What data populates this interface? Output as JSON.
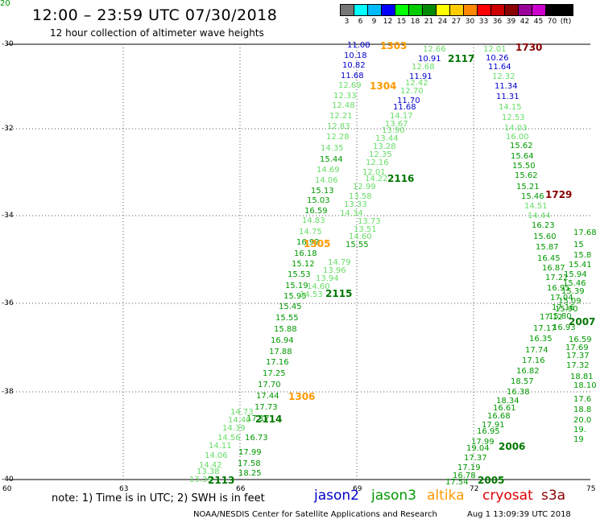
{
  "title": "12:00 – 23:59 UTC 07/30/2018",
  "subtitle": "12 hour collection of altimeter wave heights",
  "scale": {
    "unit": "(ft)",
    "labels": [
      "3",
      "6",
      "9",
      "12",
      "15",
      "18",
      "21",
      "24",
      "27",
      "30",
      "33",
      "36",
      "39",
      "42",
      "45",
      "70"
    ],
    "colors": [
      "#777777",
      "#00ffff",
      "#00bbff",
      "#0000ff",
      "#00ff00",
      "#00cc00",
      "#008800",
      "#ffff00",
      "#ffcc00",
      "#ff8800",
      "#ff0000",
      "#cc0000",
      "#880000",
      "#990099",
      "#cc00cc",
      "#000000",
      "#000000"
    ]
  },
  "axes": {
    "lat_labels": [
      "-30",
      "-32",
      "-34",
      "-36",
      "-38",
      "-40"
    ],
    "lon_labels": [
      "60",
      "63",
      "66",
      "69",
      "72",
      "75"
    ]
  },
  "observations": [
    {
      "text": "11.08",
      "color": "#0000cc"
    },
    {
      "text": "10.18",
      "color": "#0000cc"
    },
    {
      "text": "10.82",
      "color": "#0000cc"
    },
    {
      "text": "11.68",
      "color": "#0000cc"
    },
    {
      "text": "12.69",
      "color": "#66dd66"
    },
    {
      "text": "12.33",
      "color": "#66dd66"
    },
    {
      "text": "12.48",
      "color": "#66dd66"
    },
    {
      "text": "12.21",
      "color": "#66dd66"
    },
    {
      "text": "12.83",
      "color": "#66dd66"
    },
    {
      "text": "12.28",
      "color": "#66dd66"
    },
    {
      "text": "14.35",
      "color": "#66dd66"
    },
    {
      "text": "15.44",
      "color": "#009900"
    },
    {
      "text": "14.69",
      "color": "#66dd66"
    },
    {
      "text": "14.06",
      "color": "#66dd66"
    },
    {
      "text": "15.13",
      "color": "#009900"
    },
    {
      "text": "15.03",
      "color": "#009900"
    },
    {
      "text": "16.59",
      "color": "#009900"
    },
    {
      "text": "14.83",
      "color": "#66dd66"
    },
    {
      "text": "14.75",
      "color": "#66dd66"
    },
    {
      "text": "16.92",
      "color": "#009900"
    },
    {
      "text": "16.18",
      "color": "#009900"
    },
    {
      "text": "15.12",
      "color": "#009900"
    },
    {
      "text": "15.53",
      "color": "#009900"
    },
    {
      "text": "15.19",
      "color": "#009900"
    },
    {
      "text": "15.95",
      "color": "#009900"
    },
    {
      "text": "15.45",
      "color": "#009900"
    },
    {
      "text": "15.55",
      "color": "#009900"
    },
    {
      "text": "15.88",
      "color": "#009900"
    },
    {
      "text": "16.94",
      "color": "#009900"
    },
    {
      "text": "17.88",
      "color": "#009900"
    },
    {
      "text": "17.16",
      "color": "#009900"
    },
    {
      "text": "17.25",
      "color": "#009900"
    },
    {
      "text": "17.70",
      "color": "#009900"
    },
    {
      "text": "17.44",
      "color": "#009900"
    },
    {
      "text": "17.73",
      "color": "#009900"
    },
    {
      "text": "17.17",
      "color": "#009900"
    },
    {
      "text": "16.73",
      "color": "#009900"
    },
    {
      "text": "17.99",
      "color": "#009900"
    },
    {
      "text": "17.58",
      "color": "#009900"
    },
    {
      "text": "18.25",
      "color": "#009900"
    },
    {
      "text": "14.73",
      "color": "#66dd66"
    },
    {
      "text": "14.40",
      "color": "#66dd66"
    },
    {
      "text": "14.39",
      "color": "#66dd66"
    },
    {
      "text": "14.56",
      "color": "#66dd66"
    },
    {
      "text": "14.11",
      "color": "#66dd66"
    },
    {
      "text": "14.06",
      "color": "#66dd66"
    },
    {
      "text": "14.42",
      "color": "#66dd66"
    },
    {
      "text": "13.38",
      "color": "#66dd66"
    },
    {
      "text": "13.39",
      "color": "#66dd66"
    },
    {
      "text": "12.66",
      "color": "#66dd66"
    },
    {
      "text": "10.91",
      "color": "#0000cc"
    },
    {
      "text": "12.68",
      "color": "#66dd66"
    },
    {
      "text": "11.91",
      "color": "#0000cc"
    },
    {
      "text": "12.42",
      "color": "#66dd66"
    },
    {
      "text": "12.70",
      "color": "#66dd66"
    },
    {
      "text": "11.70",
      "color": "#0000cc"
    },
    {
      "text": "11.68",
      "color": "#0000cc"
    },
    {
      "text": "14.17",
      "color": "#66dd66"
    },
    {
      "text": "13.67",
      "color": "#66dd66"
    },
    {
      "text": "13.90",
      "color": "#66dd66"
    },
    {
      "text": "13.44",
      "color": "#66dd66"
    },
    {
      "text": "13.28",
      "color": "#66dd66"
    },
    {
      "text": "12.35",
      "color": "#66dd66"
    },
    {
      "text": "12.16",
      "color": "#66dd66"
    },
    {
      "text": "12.01",
      "color": "#66dd66"
    },
    {
      "text": "14.22",
      "color": "#66dd66"
    },
    {
      "text": "12.99",
      "color": "#66dd66"
    },
    {
      "text": "13.58",
      "color": "#66dd66"
    },
    {
      "text": "13.33",
      "color": "#66dd66"
    },
    {
      "text": "14.34",
      "color": "#66dd66"
    },
    {
      "text": "13.73",
      "color": "#66dd66"
    },
    {
      "text": "13.51",
      "color": "#66dd66"
    },
    {
      "text": "14.60",
      "color": "#66dd66"
    },
    {
      "text": "15.55",
      "color": "#009900"
    },
    {
      "text": "14.79",
      "color": "#66dd66"
    },
    {
      "text": "13.96",
      "color": "#66dd66"
    },
    {
      "text": "13.94",
      "color": "#66dd66"
    },
    {
      "text": "14.60",
      "color": "#66dd66"
    },
    {
      "text": "14.53",
      "color": "#66dd66"
    },
    {
      "text": "12.01",
      "color": "#66dd66"
    },
    {
      "text": "10.26",
      "color": "#0000cc"
    },
    {
      "text": "11.64",
      "color": "#0000cc"
    },
    {
      "text": "12.32",
      "color": "#66dd66"
    },
    {
      "text": "11.34",
      "color": "#0000cc"
    },
    {
      "text": "11.31",
      "color": "#0000cc"
    },
    {
      "text": "14.15",
      "color": "#66dd66"
    },
    {
      "text": "12.53",
      "color": "#66dd66"
    },
    {
      "text": "14.03",
      "color": "#66dd66"
    },
    {
      "text": "16.00",
      "color": "#66dd66"
    },
    {
      "text": "15.62",
      "color": "#009900"
    },
    {
      "text": "15.64",
      "color": "#009900"
    },
    {
      "text": "15.50",
      "color": "#009900"
    },
    {
      "text": "15.62",
      "color": "#009900"
    },
    {
      "text": "15.21",
      "color": "#009900"
    },
    {
      "text": "15.46",
      "color": "#009900"
    },
    {
      "text": "14.51",
      "color": "#66dd66"
    },
    {
      "text": "14.44",
      "color": "#66dd66"
    },
    {
      "text": "16.23",
      "color": "#009900"
    },
    {
      "text": "15.60",
      "color": "#009900"
    },
    {
      "text": "15.87",
      "color": "#009900"
    },
    {
      "text": "16.45",
      "color": "#009900"
    },
    {
      "text": "16.87",
      "color": "#009900"
    },
    {
      "text": "17.22",
      "color": "#009900"
    },
    {
      "text": "16.95",
      "color": "#009900"
    },
    {
      "text": "17.04",
      "color": "#009900"
    },
    {
      "text": "17.16",
      "color": "#009900"
    },
    {
      "text": "17.12",
      "color": "#009900"
    },
    {
      "text": "17.17",
      "color": "#009900"
    },
    {
      "text": "16.35",
      "color": "#009900"
    },
    {
      "text": "17.74",
      "color": "#009900"
    },
    {
      "text": "17.16",
      "color": "#009900"
    },
    {
      "text": "16.82",
      "color": "#009900"
    },
    {
      "text": "18.57",
      "color": "#009900"
    },
    {
      "text": "16.38",
      "color": "#009900"
    },
    {
      "text": "18.34",
      "color": "#009900"
    },
    {
      "text": "16.61",
      "color": "#009900"
    },
    {
      "text": "16.68",
      "color": "#009900"
    },
    {
      "text": "17.91",
      "color": "#009900"
    },
    {
      "text": "16.95",
      "color": "#009900"
    },
    {
      "text": "17.99",
      "color": "#009900"
    },
    {
      "text": "19.04",
      "color": "#009900"
    },
    {
      "text": "17.37",
      "color": "#009900"
    },
    {
      "text": "17.19",
      "color": "#009900"
    },
    {
      "text": "16.78",
      "color": "#009900"
    },
    {
      "text": "17.54",
      "color": "#009900"
    },
    {
      "text": "17.68",
      "color": "#009900"
    },
    {
      "text": "15",
      "color": "#009900"
    },
    {
      "text": "15.8",
      "color": "#009900"
    },
    {
      "text": "15.41",
      "color": "#009900"
    },
    {
      "text": "15.94",
      "color": "#009900"
    },
    {
      "text": "15.46",
      "color": "#009900"
    },
    {
      "text": "15.39",
      "color": "#009900"
    },
    {
      "text": "15.09",
      "color": "#009900"
    },
    {
      "text": "15.90",
      "color": "#009900"
    },
    {
      "text": "15.80",
      "color": "#009900"
    },
    {
      "text": "16.93",
      "color": "#009900"
    },
    {
      "text": "16.59",
      "color": "#009900"
    },
    {
      "text": "17.69",
      "color": "#009900"
    },
    {
      "text": "17.37",
      "color": "#009900"
    },
    {
      "text": "17.32",
      "color": "#009900"
    },
    {
      "text": "18.81",
      "color": "#009900"
    },
    {
      "text": "18.10",
      "color": "#009900"
    },
    {
      "text": "17.6",
      "color": "#009900"
    },
    {
      "text": "18.8",
      "color": "#009900"
    },
    {
      "text": "20.0",
      "color": "#009900"
    },
    {
      "text": "19.",
      "color": "#009900"
    },
    {
      "text": "19",
      "color": "#009900"
    },
    {
      "text": "20",
      "color": "#009900"
    }
  ],
  "passes": [
    {
      "text": "1303",
      "color": "#ff9900"
    },
    {
      "text": "1304",
      "color": "#ff9900"
    },
    {
      "text": "1305",
      "color": "#ff9900"
    },
    {
      "text": "1306",
      "color": "#ff9900"
    },
    {
      "text": "2117",
      "color": "#007700"
    },
    {
      "text": "2116",
      "color": "#007700"
    },
    {
      "text": "2115",
      "color": "#007700"
    },
    {
      "text": "2114",
      "color": "#007700"
    },
    {
      "text": "2113",
      "color": "#007700"
    },
    {
      "text": "1730",
      "color": "#880000"
    },
    {
      "text": "1729",
      "color": "#880000"
    },
    {
      "text": "2007",
      "color": "#007700"
    },
    {
      "text": "2006",
      "color": "#007700"
    },
    {
      "text": "2005",
      "color": "#007700"
    }
  ],
  "footer": {
    "note": "note:  1) Time is in UTC; 2) SWH is in feet",
    "credit": "NOAA/NESDIS Center for Satellite Applications and Research",
    "timestamp": "Aug  1 13:09:39 UTC 2018"
  },
  "legend": [
    {
      "label": "jason2",
      "color": "#0000cc"
    },
    {
      "label": "jason3",
      "color": "#009900"
    },
    {
      "label": "altika",
      "color": "#ff9900"
    },
    {
      "label": "cryosat",
      "color": "#dd0000"
    },
    {
      "label": "s3a",
      "color": "#880000"
    }
  ]
}
